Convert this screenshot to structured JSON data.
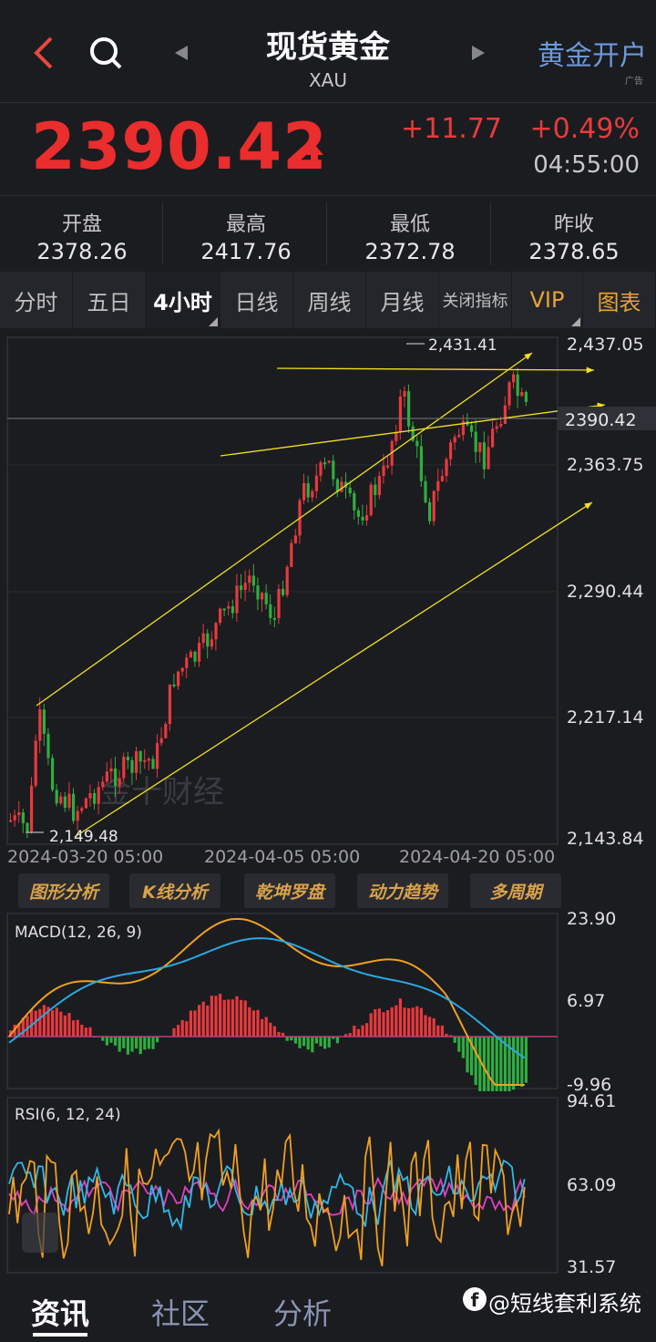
{
  "header": {
    "title": "现货黄金",
    "subtitle": "XAU",
    "ad_button": "黄金开户",
    "ad_tag": "广告"
  },
  "quote": {
    "price": "2390.42",
    "change": "+11.77",
    "change_pct": "+0.49%",
    "time": "04:55:00"
  },
  "stats": [
    {
      "label": "开盘",
      "value": "2378.26"
    },
    {
      "label": "最高",
      "value": "2417.76"
    },
    {
      "label": "最低",
      "value": "2372.78"
    },
    {
      "label": "昨收",
      "value": "2378.65"
    }
  ],
  "tabs": [
    "分时",
    "五日",
    "4小时",
    "日线",
    "周线",
    "月线",
    "关闭指标",
    "VIP",
    "图表"
  ],
  "active_tab": "4小时",
  "main_chart": {
    "y_labels": [
      "2,437.05",
      "2,363.75",
      "2,290.44",
      "2,217.14",
      "2,143.84"
    ],
    "current_price_tag": "2390.42",
    "high_marker": "2,431.41",
    "low_marker": "2,149.48",
    "x_labels": [
      "2024-03-20 05:00",
      "2024-04-05 05:00",
      "2024-04-20 05:00"
    ],
    "watermark": "金十财经"
  },
  "tools": [
    "图形分析",
    "K线分析",
    "乾坤罗盘",
    "动力趋势",
    "多周期"
  ],
  "macd": {
    "label": "MACD(12, 26, 9)",
    "y_labels": [
      "23.90",
      "6.97",
      "-9.96"
    ]
  },
  "rsi": {
    "label": "RSI(6, 12, 24)",
    "y_labels": [
      "94.61",
      "63.09",
      "31.57"
    ]
  },
  "bottom_tabs": [
    "资讯",
    "社区",
    "分析"
  ],
  "footer_credit": "@短线套利系统",
  "colors": {
    "up": "#e8393d",
    "down": "#2fae3e",
    "accent": "#e8a434",
    "link": "#6e98d8",
    "trendline": "#f0e020"
  }
}
